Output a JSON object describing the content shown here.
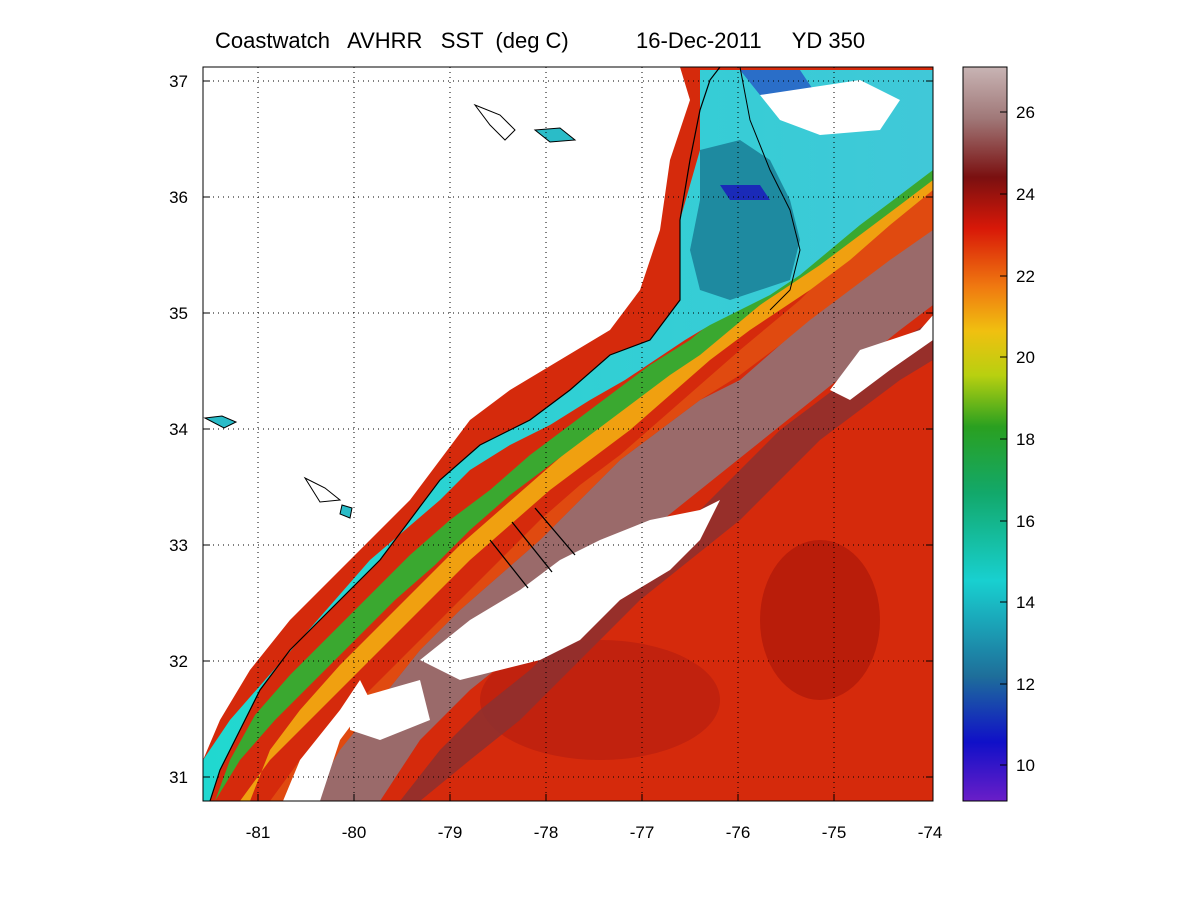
{
  "title": {
    "product": "Coastwatch   AVHRR   SST  (deg C)",
    "date": "16-Dec-2011",
    "yearday": "YD 350"
  },
  "map": {
    "lon_range": [
      -81.6,
      -74.0
    ],
    "lat_range": [
      30.8,
      37.1
    ],
    "lon_ticks": [
      "-81",
      "-80",
      "-79",
      "-78",
      "-77",
      "-76",
      "-75",
      "-74"
    ],
    "lat_ticks": [
      "31",
      "32",
      "33",
      "34",
      "35",
      "36",
      "37"
    ],
    "grid": "dotted"
  },
  "colorbar": {
    "min": 9,
    "max": 27,
    "ticks": [
      "10",
      "12",
      "14",
      "16",
      "18",
      "20",
      "22",
      "24",
      "26"
    ],
    "colors": [
      "#7a1fd6",
      "#1010c8",
      "#1e6e9a",
      "#18c8c8",
      "#12a05a",
      "#6cc81a",
      "#e8d810",
      "#f07a10",
      "#d81808",
      "#7a1010",
      "#a88080",
      "#c8b8b8"
    ]
  }
}
